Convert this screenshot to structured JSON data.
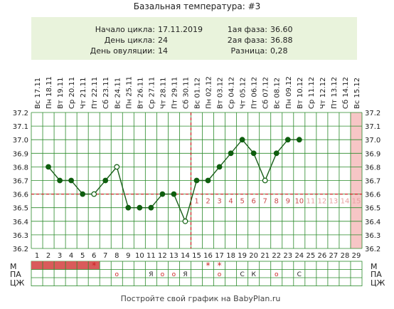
{
  "title": "Базальная температура: #3",
  "info": {
    "left_labels": [
      "Начало цикла:",
      "День цикла:",
      "День овуляции:"
    ],
    "left_values": [
      "17.11.2019",
      "24",
      "14"
    ],
    "right_labels": [
      "1ая фаза:",
      "2ая фаза:",
      "Разница:"
    ],
    "right_values": [
      "36.60",
      "36.88",
      "0,28"
    ]
  },
  "footer": "Постройте свой график на BabyPlan.ru",
  "row_labels": [
    "М",
    "ПА",
    "ЦЖ"
  ],
  "colors": {
    "line": "#1a5e1a",
    "point": "#0f5e0f",
    "accent_red": "#cc2222",
    "grid": "#2a8a2a",
    "info_bg": "#e9f3dc",
    "mens_fill": "#d95b5b",
    "forecast_fill": "#f7c6c6"
  },
  "chart_data": {
    "type": "line",
    "title": "Базальная температура: #3",
    "x_days": [
      1,
      2,
      3,
      4,
      5,
      6,
      7,
      8,
      9,
      10,
      11,
      12,
      13,
      14,
      15,
      16,
      17,
      18,
      19,
      20,
      21,
      22,
      23,
      24,
      25,
      26,
      27,
      28,
      29
    ],
    "date_labels": [
      "Вс 17.11",
      "Пн 18.11",
      "Вт 19.11",
      "Ср 20.11",
      "Чт 21.11",
      "Пт 22.11",
      "Сб 23.11",
      "Вс 24.11",
      "Пн 25.11",
      "Вт 26.11",
      "Ср 27.11",
      "Чт 28.11",
      "Пт 29.11",
      "Сб 30.11",
      "Вс 01.12",
      "Пн 02.12",
      "Вт 03.12",
      "Ср 04.12",
      "Чт 05.12",
      "Пт 06.12",
      "Сб 07.12",
      "Вс 08.12",
      "Пн 09.12",
      "Вт 10.12",
      "Ср 11.12",
      "Чт 12.12",
      "Пт 13.12",
      "Сб 14.12",
      "Вс 15.12"
    ],
    "y_ticks": [
      "36.2",
      "36.3",
      "36.4",
      "36.5",
      "36.6",
      "36.7",
      "36.8",
      "36.9",
      "37.0",
      "37.1",
      "37.2"
    ],
    "ylim": [
      36.2,
      37.2
    ],
    "series": [
      {
        "days": [
          2,
          3,
          4,
          5,
          6,
          7,
          8,
          9,
          10,
          11,
          12,
          13,
          14,
          15,
          16,
          17,
          18,
          19,
          20,
          21,
          22,
          23,
          24
        ],
        "values": [
          36.8,
          36.7,
          36.7,
          36.6,
          36.6,
          36.7,
          36.8,
          36.5,
          36.5,
          36.5,
          36.6,
          36.6,
          36.4,
          36.7,
          36.7,
          36.8,
          36.9,
          37.0,
          36.9,
          36.7,
          36.9,
          37.0,
          37.0
        ],
        "open_points": [
          6,
          8,
          14,
          21
        ]
      }
    ],
    "coverline": 36.6,
    "ovulation_day": 14,
    "forecast_day": 29,
    "luteal_labels": [
      "1",
      "2",
      "3",
      "4",
      "5",
      "6",
      "7",
      "8",
      "9",
      "10",
      "11",
      "12",
      "13",
      "14",
      "15"
    ],
    "luteal_start_day": 15,
    "luteal_dark_count": 10,
    "mens_days": [
      1,
      2,
      3,
      4,
      5,
      6
    ],
    "mens_star_days": [
      6,
      16,
      17
    ],
    "pa_marks": [
      {
        "day": 8,
        "text": "o"
      },
      {
        "day": 11,
        "text": "Я"
      },
      {
        "day": 12,
        "text": "o"
      },
      {
        "day": 13,
        "text": "o"
      },
      {
        "day": 14,
        "text": "Я"
      },
      {
        "day": 17,
        "text": "o"
      },
      {
        "day": 19,
        "text": "С"
      },
      {
        "day": 20,
        "text": "К"
      },
      {
        "day": 22,
        "text": "o"
      },
      {
        "day": 24,
        "text": "С"
      }
    ]
  }
}
